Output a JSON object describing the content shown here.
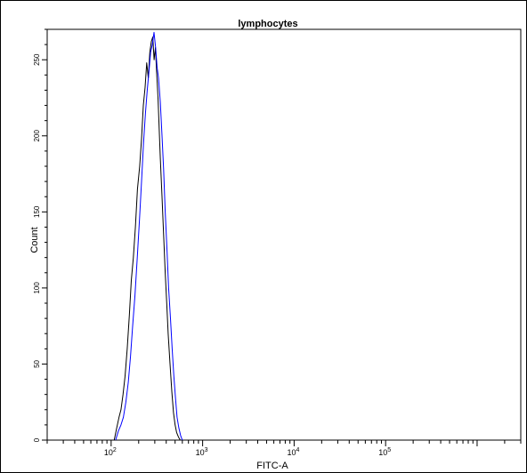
{
  "chart_data": {
    "type": "line",
    "title": "lymphocytes",
    "xlabel": "FITC-A",
    "ylabel": "Count",
    "x_scale": "log",
    "xlim": [
      20,
      3000000
    ],
    "ylim": [
      0,
      270
    ],
    "grid": false,
    "legend": "none",
    "x_ticks": [
      {
        "value": 100,
        "base": "10",
        "exp": "2"
      },
      {
        "value": 1000,
        "base": "10",
        "exp": "3"
      },
      {
        "value": 10000,
        "base": "10",
        "exp": "4"
      },
      {
        "value": 100000,
        "base": "10",
        "exp": "5"
      }
    ],
    "y_ticks": [
      "0",
      "50",
      "100",
      "150",
      "200",
      "250"
    ],
    "series": [
      {
        "color": "#000000",
        "x": [
          108,
          115,
          122,
          128,
          135,
          142,
          150,
          158,
          166,
          175,
          184,
          194,
          205,
          215,
          225,
          235,
          245,
          255,
          265,
          275,
          285,
          295,
          305,
          315,
          325,
          335,
          345,
          360,
          375,
          390,
          405,
          420,
          440,
          460,
          480,
          500,
          520,
          545,
          570
        ],
        "values": [
          0,
          8,
          15,
          20,
          30,
          42,
          60,
          82,
          105,
          120,
          140,
          165,
          180,
          198,
          220,
          232,
          248,
          238,
          255,
          262,
          265,
          250,
          258,
          240,
          225,
          205,
          185,
          160,
          135,
          110,
          90,
          70,
          50,
          32,
          18,
          10,
          5,
          2,
          0
        ]
      },
      {
        "color": "#0000ff",
        "x": [
          112,
          120,
          128,
          136,
          145,
          154,
          163,
          172,
          182,
          193,
          204,
          215,
          226,
          237,
          248,
          259,
          270,
          282,
          294,
          306,
          318,
          330,
          345,
          360,
          375,
          390,
          408,
          425,
          445,
          465,
          485,
          505,
          525,
          550,
          575,
          600
        ],
        "values": [
          0,
          6,
          10,
          15,
          25,
          38,
          55,
          75,
          95,
          120,
          145,
          170,
          195,
          215,
          230,
          242,
          255,
          260,
          268,
          258,
          245,
          238,
          222,
          200,
          178,
          150,
          125,
          100,
          80,
          60,
          42,
          28,
          15,
          8,
          3,
          0
        ]
      }
    ]
  }
}
